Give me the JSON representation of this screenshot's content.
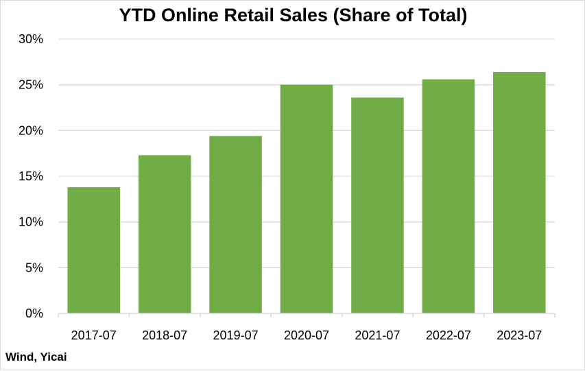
{
  "chart_data": {
    "type": "bar",
    "title": "YTD Online Retail Sales (Share of Total)",
    "xlabel": "",
    "ylabel": "",
    "categories": [
      "2017-07",
      "2018-07",
      "2019-07",
      "2020-07",
      "2021-07",
      "2022-07",
      "2023-07"
    ],
    "values": [
      13.8,
      17.3,
      19.4,
      25.0,
      23.6,
      25.6,
      26.4
    ],
    "unit": "%",
    "ylim": [
      0,
      30
    ],
    "yticks": [
      "0%",
      "5%",
      "10%",
      "15%",
      "20%",
      "25%",
      "30%"
    ],
    "grid": true,
    "legend": "none",
    "bar_color": "#70ad47",
    "grid_color": "#d9d9d9"
  },
  "source": "Wind, Yicai"
}
